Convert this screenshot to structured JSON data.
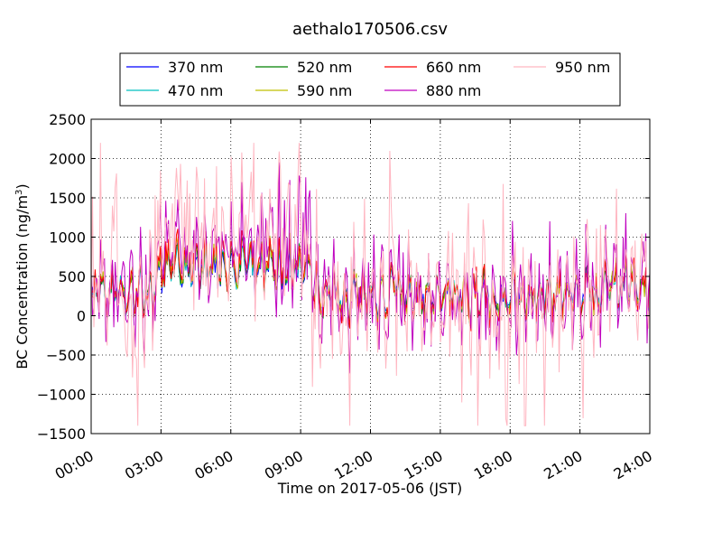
{
  "chart_data": {
    "type": "line",
    "title": "aethalo170506.csv",
    "xlabel": "Time on 2017-05-06 (JST)",
    "ylabel_main": "BC Concentration (ng/m",
    "ylabel_sup": "3",
    "ylabel_tail": ")",
    "xlim_hours": [
      0,
      24
    ],
    "ylim": [
      -1500,
      2500
    ],
    "yticks": [
      -1500,
      -1000,
      -500,
      0,
      500,
      1000,
      1500,
      2000,
      2500
    ],
    "yticklabels": [
      "−1500",
      "−1000",
      "−500",
      "0",
      "500",
      "1000",
      "1500",
      "2000",
      "2500"
    ],
    "xticks_hours": [
      0,
      3,
      6,
      9,
      12,
      15,
      18,
      21,
      24
    ],
    "xticklabels": [
      "00:00",
      "03:00",
      "06:00",
      "09:00",
      "12:00",
      "15:00",
      "18:00",
      "21:00",
      "24:00"
    ],
    "grid": true,
    "legend_position": "top-center",
    "series": [
      {
        "name": "370 nm",
        "color": "#0000ff"
      },
      {
        "name": "470 nm",
        "color": "#00bfbf"
      },
      {
        "name": "520 nm",
        "color": "#008000"
      },
      {
        "name": "590 nm",
        "color": "#bfbf00"
      },
      {
        "name": "660 nm",
        "color": "#ff0000"
      },
      {
        "name": "880 nm",
        "color": "#bf00bf"
      },
      {
        "name": "950 nm",
        "color": "#ffb6c1"
      }
    ]
  }
}
